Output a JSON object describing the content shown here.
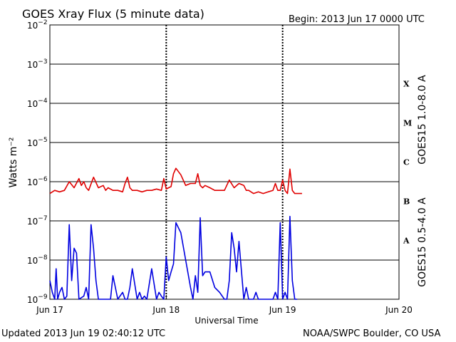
{
  "header": {
    "title": "GOES Xray Flux (5 minute data)",
    "begin": "Begin:  2013 Jun 17 0000 UTC"
  },
  "footer": {
    "updated": "Updated 2013 Jun 19 02:40:12 UTC",
    "credit": "NOAA/SWPC Boulder, CO USA"
  },
  "chart_data": {
    "type": "line",
    "title": "GOES Xray Flux (5 minute data)",
    "xlabel": "Universal Time",
    "ylabel": "Watts m⁻²",
    "y_scale": "log",
    "ylim": [
      1e-09,
      0.01
    ],
    "xlim": [
      0,
      72
    ],
    "x_unit": "hours since 2013 Jun 17 0000 UTC",
    "x_ticks": [
      {
        "x": 0,
        "label": "Jun 17"
      },
      {
        "x": 24,
        "label": "Jun 18"
      },
      {
        "x": 48,
        "label": "Jun 19"
      },
      {
        "x": 72,
        "label": "Jun 20"
      }
    ],
    "y_ticks": [
      {
        "exp": -9,
        "label": "10",
        "sup": "−9"
      },
      {
        "exp": -8,
        "label": "10",
        "sup": "−8"
      },
      {
        "exp": -7,
        "label": "10",
        "sup": "−7"
      },
      {
        "exp": -6,
        "label": "10",
        "sup": "−6"
      },
      {
        "exp": -5,
        "label": "10",
        "sup": "−5"
      },
      {
        "exp": -4,
        "label": "10",
        "sup": "−4"
      },
      {
        "exp": -3,
        "label": "10",
        "sup": "−3"
      },
      {
        "exp": -2,
        "label": "10",
        "sup": "−2"
      }
    ],
    "flare_classes": [
      {
        "label": "A",
        "exp": -7.5
      },
      {
        "label": "B",
        "exp": -6.5
      },
      {
        "label": "C",
        "exp": -5.5
      },
      {
        "label": "M",
        "exp": -4.5
      },
      {
        "label": "X",
        "exp": -3.5
      }
    ],
    "grid": true,
    "series": [
      {
        "name": "GOES15 1.0-8.0 A",
        "color": "#e00000",
        "x": [
          0,
          1,
          2,
          3,
          4,
          5,
          6,
          6.5,
          7,
          7.5,
          8,
          9,
          10,
          11,
          11.5,
          12,
          13,
          14,
          15,
          15.5,
          16,
          16.5,
          17,
          18,
          19,
          20,
          21,
          22,
          23,
          23.5,
          24,
          24.5,
          25,
          25.5,
          26,
          27,
          28,
          29,
          30,
          30.5,
          31,
          31.5,
          32,
          33,
          34,
          35,
          36,
          37,
          38,
          39,
          40,
          40.5,
          41,
          42,
          43,
          44,
          45,
          46,
          46.5,
          47,
          47.5,
          48,
          48.5,
          49,
          49.5,
          50,
          50.5,
          51,
          52
        ],
        "y": [
          5e-07,
          6e-07,
          5.5e-07,
          6e-07,
          1e-06,
          7e-07,
          1.2e-06,
          8e-07,
          1e-06,
          7e-07,
          6e-07,
          1.3e-06,
          7e-07,
          8e-07,
          6e-07,
          7e-07,
          6e-07,
          6e-07,
          5.5e-07,
          9e-07,
          1.3e-06,
          7e-07,
          6e-07,
          6e-07,
          5.5e-07,
          6e-07,
          6e-07,
          6.5e-07,
          6e-07,
          1.2e-06,
          6.5e-07,
          7e-07,
          7.5e-07,
          1.6e-06,
          2.2e-06,
          1.5e-06,
          8e-07,
          9e-07,
          9e-07,
          1.6e-06,
          8e-07,
          7e-07,
          8e-07,
          7e-07,
          6e-07,
          6e-07,
          6e-07,
          1.1e-06,
          7e-07,
          9e-07,
          8e-07,
          6e-07,
          6e-07,
          5e-07,
          5.5e-07,
          5e-07,
          5.5e-07,
          6e-07,
          9e-07,
          6e-07,
          6e-07,
          1.1e-06,
          6e-07,
          5e-07,
          2.1e-06,
          6e-07,
          5e-07,
          5e-07,
          5e-07
        ]
      },
      {
        "name": "GOES15 0.5-4.0 A",
        "color": "#0000e0",
        "x": [
          0,
          0.5,
          1,
          1.3,
          1.6,
          2,
          2.5,
          3,
          3.5,
          4,
          4.5,
          5,
          5.5,
          6,
          7,
          7.5,
          8,
          8.5,
          9,
          9.5,
          10,
          11,
          12,
          12.5,
          13,
          13.5,
          14,
          15,
          15.5,
          16,
          16.5,
          17,
          18,
          18.5,
          19,
          19.5,
          20,
          21,
          22,
          22.5,
          23,
          23.5,
          24,
          24.5,
          25,
          25.5,
          26,
          27,
          28,
          29,
          29.5,
          30,
          30.5,
          31,
          31.5,
          32,
          33,
          34,
          35,
          36,
          36.5,
          37,
          37.5,
          38,
          38.5,
          39,
          40,
          40.5,
          41,
          42,
          42.5,
          43,
          44,
          45,
          46,
          46.5,
          47,
          47.5,
          48,
          48.5,
          49,
          49.5,
          50,
          50.5,
          51
        ],
        "y": [
          3e-09,
          1.5e-09,
          1e-09,
          6e-09,
          1e-09,
          1.5e-09,
          2e-09,
          1e-09,
          1.2e-09,
          8e-08,
          3e-09,
          2e-08,
          1.5e-08,
          1e-09,
          1.2e-09,
          2e-09,
          1e-09,
          8e-08,
          2e-08,
          3e-09,
          1e-09,
          1e-09,
          1e-09,
          1e-09,
          4e-09,
          2e-09,
          1e-09,
          1.5e-09,
          1e-09,
          1e-09,
          2e-09,
          6e-09,
          1e-09,
          1.5e-09,
          1e-09,
          1.2e-09,
          1e-09,
          6e-09,
          1e-09,
          1.5e-09,
          1.2e-09,
          1e-09,
          1.2e-08,
          3e-09,
          5e-09,
          8e-09,
          9e-08,
          5e-08,
          1e-08,
          2e-09,
          1e-09,
          4e-09,
          1.5e-09,
          1.2e-07,
          4e-09,
          5e-09,
          5e-09,
          2e-09,
          1.5e-09,
          1e-09,
          1e-09,
          3e-09,
          5e-08,
          2e-08,
          5e-09,
          3e-08,
          1e-09,
          2e-09,
          1e-09,
          1e-09,
          1.5e-09,
          1e-09,
          1e-09,
          1e-09,
          1e-09,
          1.5e-09,
          1e-09,
          9e-08,
          1e-09,
          1.5e-09,
          1e-09,
          1.3e-07,
          3e-09,
          1e-09,
          1e-09
        ]
      }
    ]
  }
}
